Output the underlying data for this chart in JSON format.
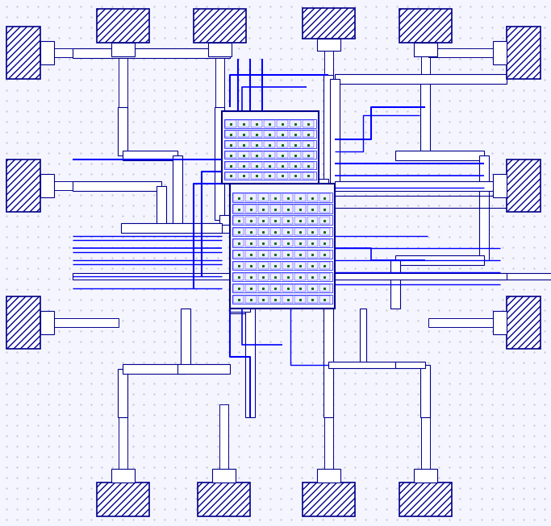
{
  "bg_color": "#f5f5ff",
  "dot_color": "#bbbbcc",
  "lc": "#00008B",
  "bc": "#0000FF",
  "figsize": [
    6.83,
    6.53
  ],
  "dpi": 100
}
